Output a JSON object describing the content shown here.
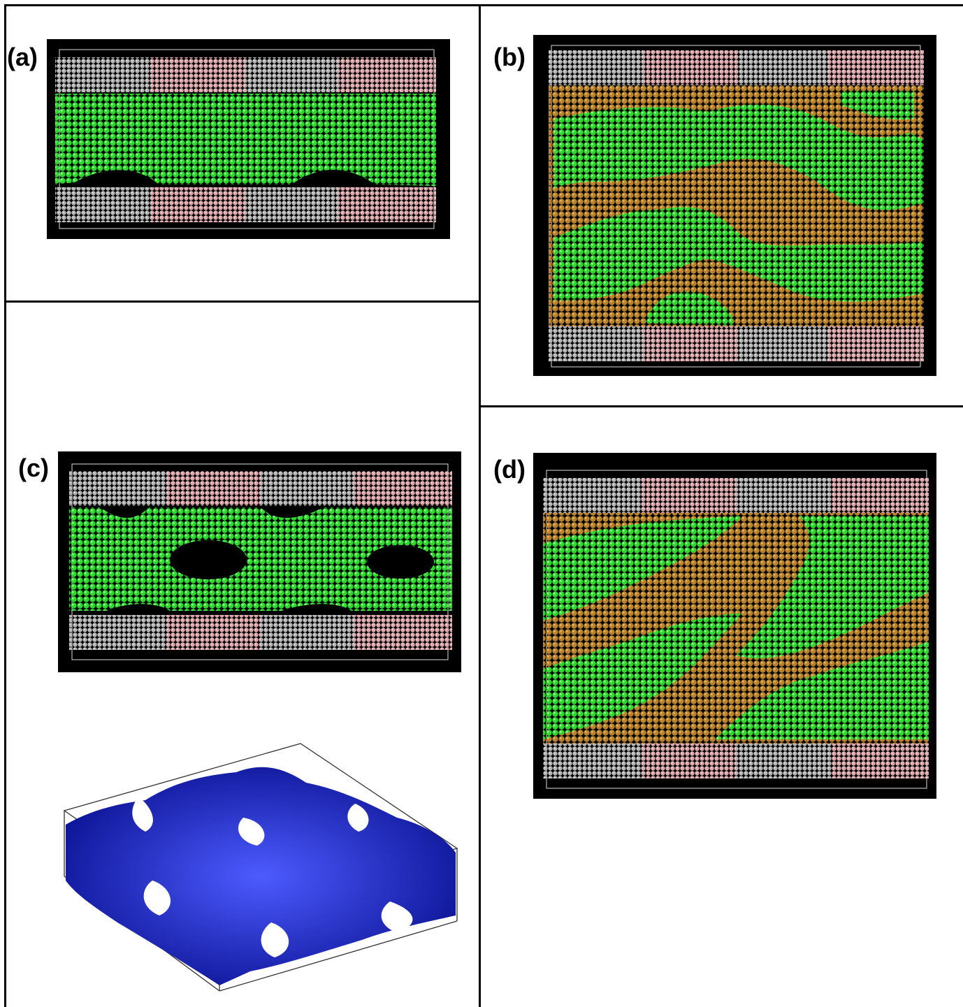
{
  "panels": [
    {
      "id": "a",
      "label": "(a)",
      "layers": [
        "wall",
        "liquid-gap",
        "wall"
      ]
    },
    {
      "id": "b",
      "label": "(b)",
      "layers": [
        "wall",
        "two-phase",
        "wall"
      ]
    },
    {
      "id": "c",
      "label": "(c)",
      "layers": [
        "wall",
        "liquid-holes",
        "wall"
      ]
    },
    {
      "id": "d",
      "label": "(d)",
      "layers": [
        "wall",
        "two-phase-diagonal",
        "wall"
      ]
    }
  ],
  "colors": {
    "wall_grey": "#a8a8a8",
    "wall_pink": "#d9a3a8",
    "liquid_green": "#22c422",
    "second_phase_brown": "#b07a24",
    "background": "#000000",
    "surface_blue": "#0a12a8"
  }
}
